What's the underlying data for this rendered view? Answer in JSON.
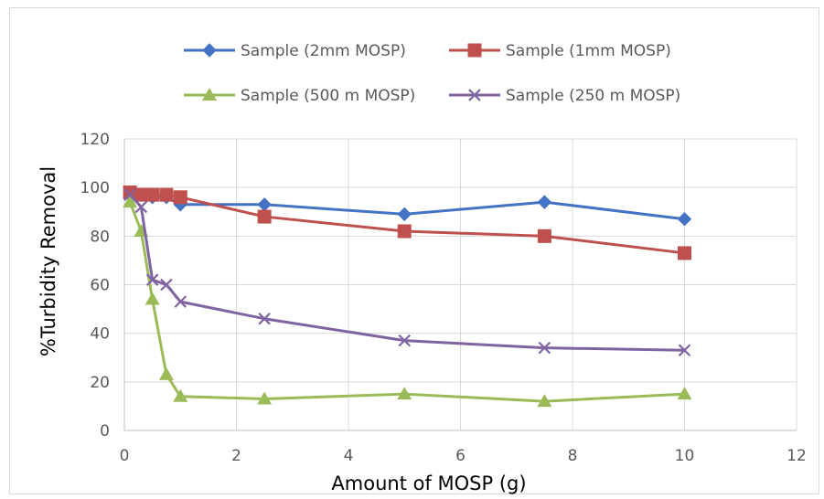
{
  "chart_data": {
    "type": "line",
    "title": "",
    "xlabel": "Amount of MOSP (g)",
    "ylabel": "%Turbidity Removal",
    "xlim": [
      0,
      12
    ],
    "ylim": [
      0,
      120
    ],
    "x_ticks": [
      0,
      2,
      4,
      6,
      8,
      10,
      12
    ],
    "x_tick_labels": [
      "0",
      "2",
      "4",
      "6",
      "8",
      "10",
      "12"
    ],
    "y_ticks": [
      0,
      20,
      40,
      60,
      80,
      100,
      120
    ],
    "y_tick_labels": [
      "0",
      "20",
      "40",
      "60",
      "80",
      "100",
      "120"
    ],
    "grid": true,
    "legend_position": "top",
    "series": [
      {
        "name": "Sample (2mm MOSP)",
        "color": "#4472c4",
        "marker": "diamond",
        "x": [
          0.1,
          0.3,
          0.5,
          0.75,
          1.0,
          2.5,
          5.0,
          7.5,
          10.0
        ],
        "y": [
          97,
          97,
          96,
          96,
          93,
          93,
          89,
          94,
          87
        ]
      },
      {
        "name": "Sample (1mm MOSP)",
        "color": "#c0504d",
        "marker": "square",
        "x": [
          0.1,
          0.3,
          0.5,
          0.75,
          1.0,
          2.5,
          5.0,
          7.5,
          10.0
        ],
        "y": [
          98,
          97,
          97,
          97,
          96,
          88,
          82,
          80,
          73
        ]
      },
      {
        "name": "Sample (500 m MOSP)",
        "color": "#9bbb59",
        "marker": "triangle",
        "x": [
          0.1,
          0.3,
          0.5,
          0.75,
          1.0,
          2.5,
          5.0,
          7.5,
          10.0
        ],
        "y": [
          94,
          82,
          54,
          23,
          14,
          13,
          15,
          12,
          15
        ]
      },
      {
        "name": "Sample (250 m MOSP)",
        "color": "#8064a2",
        "marker": "x",
        "x": [
          0.1,
          0.3,
          0.5,
          0.75,
          1.0,
          2.5,
          5.0,
          7.5,
          10.0
        ],
        "y": [
          97,
          92,
          62,
          60,
          53,
          46,
          37,
          34,
          33
        ]
      }
    ]
  }
}
